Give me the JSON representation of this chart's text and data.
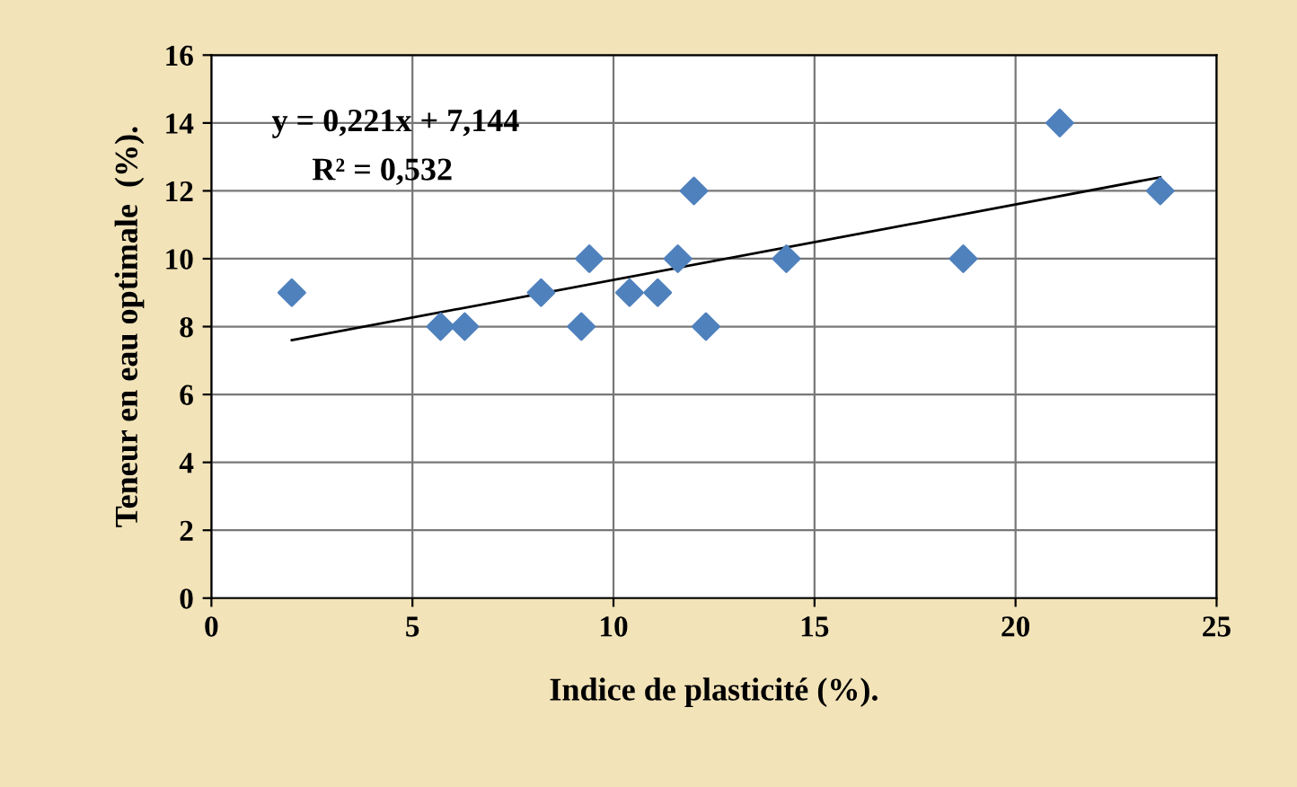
{
  "chart_data": {
    "type": "scatter",
    "xlabel": "Indice de plasticité (%).",
    "ylabel": "Teneur en eau optimale  (%).",
    "x": [
      2.0,
      5.7,
      6.3,
      8.2,
      9.2,
      9.4,
      10.4,
      11.1,
      11.6,
      12.0,
      12.3,
      14.3,
      18.7,
      21.1,
      23.6
    ],
    "series": [
      {
        "color": "#4f81bd",
        "marker": "diamond",
        "values": [
          9,
          8,
          8,
          9,
          8,
          10,
          9,
          9,
          10,
          12,
          8,
          10,
          10,
          14,
          12
        ]
      },
      {
        "type": "line",
        "color": "#000000",
        "x": [
          2.0,
          23.6
        ],
        "values": [
          7.6,
          12.4
        ]
      }
    ],
    "annotations": [
      "y = 0,221x + 7,144",
      "R² = 0,532"
    ],
    "xlim": [
      0,
      25
    ],
    "xticks": [
      0,
      5,
      10,
      15,
      20,
      25
    ],
    "ylim": [
      0,
      16
    ],
    "yticks": [
      0,
      2,
      4,
      6,
      8,
      10,
      12,
      14,
      16
    ],
    "grid": true,
    "legend": false
  }
}
